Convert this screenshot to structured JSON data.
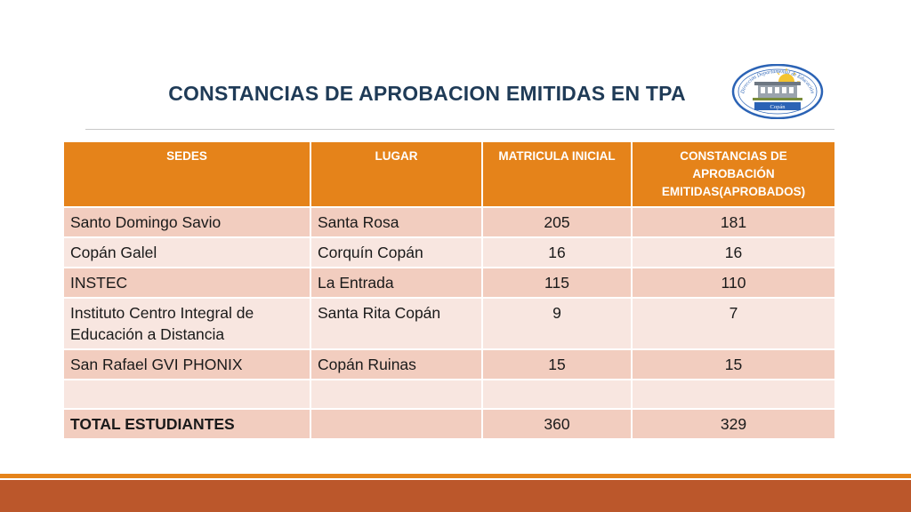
{
  "title": "CONSTANCIAS DE APROBACION EMITIDAS EN TPA",
  "logo": {
    "icon": "education-department-seal",
    "arc_text": "Dirección Departamental de Educación",
    "ribbon_text": "Copán"
  },
  "table": {
    "headers": [
      "SEDES",
      "LUGAR",
      "MATRICULA INICIAL",
      "CONSTANCIAS DE APROBACIÓN EMITIDAS(APROBADOS)"
    ],
    "rows": [
      {
        "sede": "Santo Domingo Savio",
        "lugar": "Santa Rosa",
        "matricula": "205",
        "constancias": "181"
      },
      {
        "sede": "Copán Galel",
        "lugar": "Corquín Copán",
        "matricula": "16",
        "constancias": "16"
      },
      {
        "sede": "INSTEC",
        "lugar": "La Entrada",
        "matricula": "115",
        "constancias": "110"
      },
      {
        "sede": "Instituto Centro Integral de Educación a Distancia",
        "lugar": "Santa Rita Copán",
        "matricula": "9",
        "constancias": "7"
      },
      {
        "sede": "San Rafael GVI PHONIX",
        "lugar": "Copán Ruinas",
        "matricula": "15",
        "constancias": "15"
      },
      {
        "sede": "",
        "lugar": "",
        "matricula": "",
        "constancias": ""
      },
      {
        "sede": "TOTAL ESTUDIANTES",
        "lugar": "",
        "matricula": "360",
        "constancias": "329"
      }
    ]
  },
  "colors": {
    "header_orange": "#e5831a",
    "row_dark": "#f2cdbf",
    "row_light": "#f8e6e0",
    "title_blue": "#1f3b57",
    "footer_rust": "#bb572b"
  }
}
